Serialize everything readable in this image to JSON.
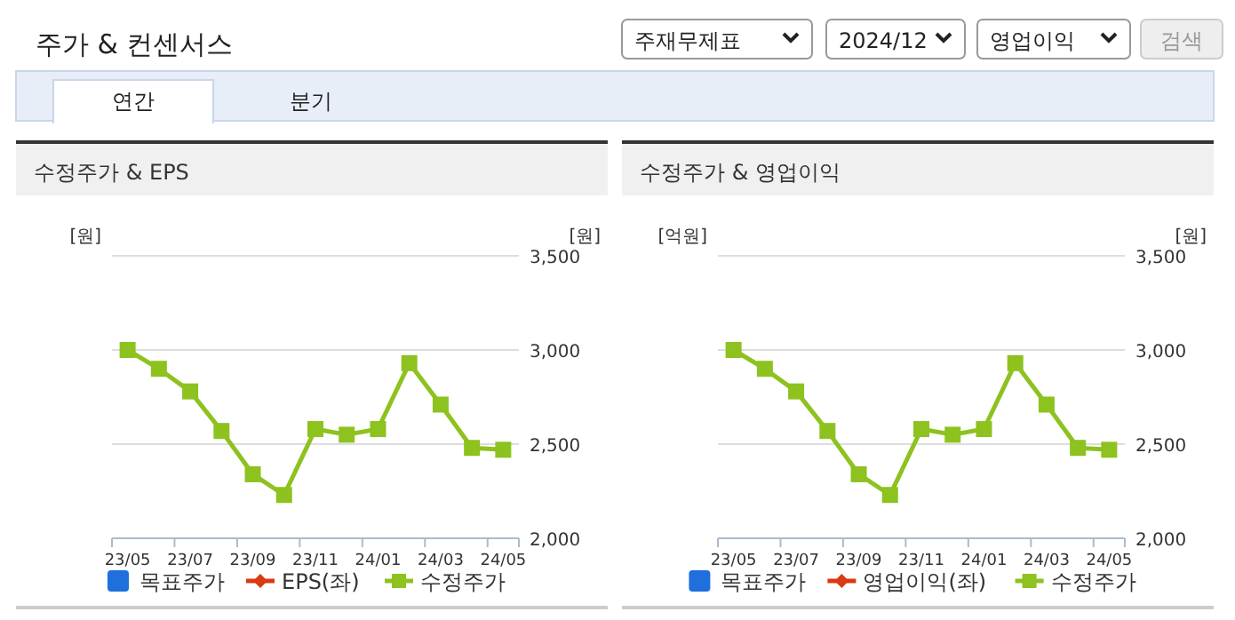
{
  "chart_data": [
    {
      "type": "other",
      "title": "주가 & 컨센서스",
      "annotations": [
        "주재무제표",
        "2024/12",
        "영업이익",
        "검색",
        "연간",
        "분기"
      ]
    },
    {
      "type": "line",
      "title": "수정주가 & EPS",
      "ylabel": "[원]",
      "y2label": "[원]",
      "categories": [
        "23/05",
        null,
        "23/07",
        null,
        "23/09",
        null,
        "23/11",
        null,
        "24/01",
        null,
        "24/03",
        null,
        "24/05"
      ],
      "y2lim": [
        2000,
        3500
      ],
      "y2ticks": [
        {
          "value": 2000,
          "label": "2,000"
        },
        {
          "value": 2500,
          "label": "2,500"
        },
        {
          "value": 3000,
          "label": "3,000"
        },
        {
          "value": 3500,
          "label": "3,500"
        }
      ],
      "grid": "y",
      "legend": "bottom",
      "series": [
        {
          "name": "목표주가",
          "color": "#1f6fdc",
          "type": "scatter",
          "marker": "square",
          "values": [
            null,
            null,
            null,
            null,
            null,
            null,
            null,
            null,
            null,
            null,
            null,
            null,
            null
          ]
        },
        {
          "name": "EPS(좌)",
          "color": "#d83a12",
          "type": "line",
          "marker": "diamond",
          "values": [
            null,
            null,
            null,
            null,
            null,
            null,
            null,
            null,
            null,
            null,
            null,
            null,
            null
          ]
        },
        {
          "name": "수정주가",
          "color": "#8dc21f",
          "type": "line",
          "marker": "square",
          "axis": "y2",
          "values": [
            3000,
            2900,
            2780,
            2570,
            2340,
            2230,
            2580,
            2550,
            2580,
            2930,
            2710,
            2480,
            2470
          ]
        }
      ]
    },
    {
      "type": "line",
      "title": "수정주가 & 영업이익",
      "ylabel": "[억원]",
      "y2label": "[원]",
      "categories": [
        "23/05",
        null,
        "23/07",
        null,
        "23/09",
        null,
        "23/11",
        null,
        "24/01",
        null,
        "24/03",
        null,
        "24/05"
      ],
      "y2lim": [
        2000,
        3500
      ],
      "y2ticks": [
        {
          "value": 2000,
          "label": "2,000"
        },
        {
          "value": 2500,
          "label": "2,500"
        },
        {
          "value": 3000,
          "label": "3,000"
        },
        {
          "value": 3500,
          "label": "3,500"
        }
      ],
      "grid": "y",
      "legend": "bottom",
      "series": [
        {
          "name": "목표주가",
          "color": "#1f6fdc",
          "type": "scatter",
          "marker": "square",
          "values": [
            null,
            null,
            null,
            null,
            null,
            null,
            null,
            null,
            null,
            null,
            null,
            null,
            null
          ]
        },
        {
          "name": "영업이익(좌)",
          "color": "#d83a12",
          "type": "line",
          "marker": "diamond",
          "values": [
            null,
            null,
            null,
            null,
            null,
            null,
            null,
            null,
            null,
            null,
            null,
            null,
            null
          ]
        },
        {
          "name": "수정주가",
          "color": "#8dc21f",
          "type": "line",
          "marker": "square",
          "axis": "y2",
          "values": [
            3000,
            2900,
            2780,
            2570,
            2340,
            2230,
            2580,
            2550,
            2580,
            2930,
            2710,
            2480,
            2470
          ]
        }
      ]
    }
  ]
}
